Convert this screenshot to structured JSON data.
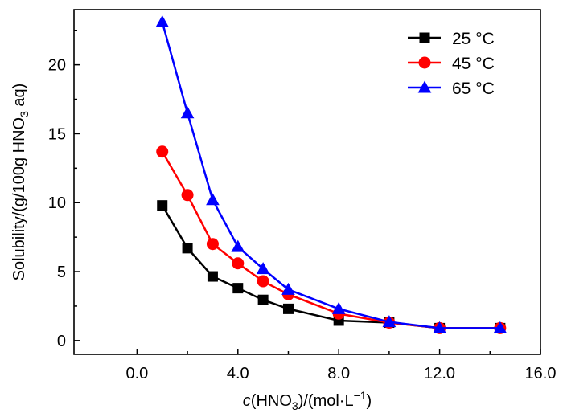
{
  "chart_data": {
    "type": "line",
    "x_label_parts": {
      "italic": "c",
      "pre": "(HNO",
      "sub": "3",
      "mid": ")/(mol·L",
      "sup": "−1",
      "post": ")"
    },
    "y_label_parts": {
      "pre": "Solubility/(g/100g HNO",
      "sub": "3",
      "post": " aq)"
    },
    "xlim": [
      -2.5,
      16
    ],
    "ylim": [
      -1,
      24
    ],
    "x_ticks": [
      0,
      4,
      8,
      12,
      16
    ],
    "x_tick_labels": [
      "0.0",
      "4.0",
      "8.0",
      "12.0",
      "16.0"
    ],
    "y_ticks": [
      0,
      5,
      10,
      15,
      20
    ],
    "y_tick_labels": [
      "0",
      "5",
      "10",
      "15",
      "20"
    ],
    "grid": false,
    "legend_position": "top-right",
    "series": [
      {
        "name": "25 °C",
        "color": "#000000",
        "marker": "square",
        "x": [
          1,
          2,
          3,
          4,
          5,
          6,
          8,
          10,
          12,
          14.4
        ],
        "y": [
          9.8,
          6.7,
          4.65,
          3.8,
          2.95,
          2.3,
          1.45,
          1.3,
          0.9,
          0.9
        ]
      },
      {
        "name": "45 °C",
        "color": "#ff0000",
        "marker": "circle",
        "x": [
          1,
          2,
          3,
          4,
          5,
          6,
          8,
          10,
          12,
          14.4
        ],
        "y": [
          13.7,
          10.55,
          7.0,
          5.6,
          4.3,
          3.35,
          1.95,
          1.3,
          0.9,
          0.9
        ]
      },
      {
        "name": "65 °C",
        "color": "#0000ff",
        "marker": "triangle",
        "x": [
          1,
          2,
          3,
          4,
          5,
          6,
          8,
          10,
          12,
          14.4
        ],
        "y": [
          23.1,
          16.5,
          10.2,
          6.8,
          5.2,
          3.7,
          2.3,
          1.35,
          0.9,
          0.9
        ]
      }
    ]
  }
}
